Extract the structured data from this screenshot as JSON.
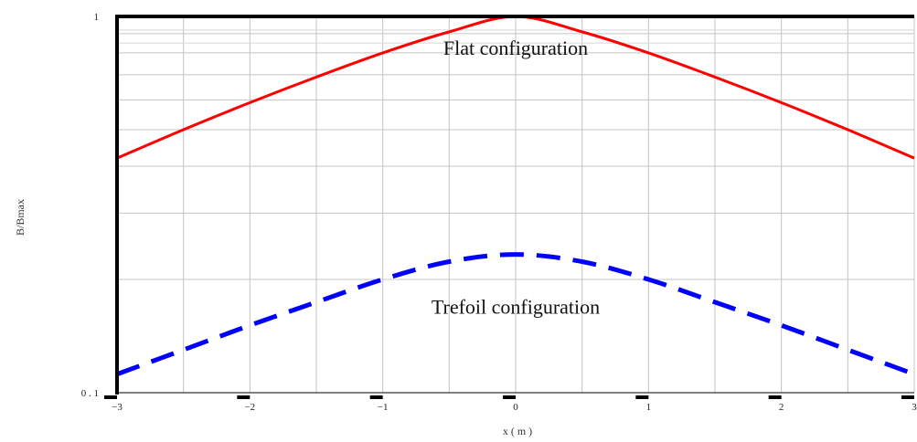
{
  "chart_data": {
    "type": "line",
    "title": "",
    "xlabel": "x  ( m )",
    "ylabel": "B/Bmax",
    "xlim": [
      -3,
      3
    ],
    "ylim": [
      0.1,
      1
    ],
    "yscale": "log",
    "grid": true,
    "x_ticks": [
      -3,
      -2,
      -1,
      0,
      1,
      2,
      3
    ],
    "x_tick_labels": [
      "−3",
      "−2",
      "−1",
      "0",
      "1",
      "2",
      "3"
    ],
    "y_tick_labels": [
      "0 . 1",
      "1"
    ],
    "y_ticks": [
      0.1,
      1
    ],
    "series": [
      {
        "color": "#ff0000",
        "style": "solid",
        "x": [
          -3,
          -2.5,
          -2,
          -1.5,
          -1,
          -0.5,
          0,
          0.5,
          1,
          1.5,
          2,
          2.5,
          3
        ],
        "y": [
          0.42,
          0.5,
          0.59,
          0.69,
          0.8,
          0.91,
          1.0,
          0.91,
          0.8,
          0.69,
          0.59,
          0.5,
          0.42
        ]
      },
      {
        "color": "#0000ff",
        "style": "dashed",
        "x": [
          -3,
          -2.5,
          -2,
          -1.5,
          -1,
          -0.5,
          0,
          0.5,
          1,
          1.5,
          2,
          2.5,
          3
        ],
        "y": [
          0.112,
          0.13,
          0.151,
          0.174,
          0.2,
          0.223,
          0.233,
          0.223,
          0.2,
          0.174,
          0.151,
          0.13,
          0.112
        ]
      }
    ],
    "annotations": [
      {
        "text": "Flat  configuration",
        "x": 0,
        "y": 0.79
      },
      {
        "text": "Trefoil configuration",
        "x": 0,
        "y": 0.162
      }
    ]
  }
}
